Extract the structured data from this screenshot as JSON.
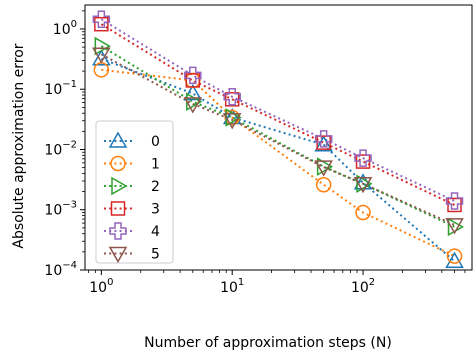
{
  "chart_data": {
    "type": "line",
    "title": "",
    "xlabel": "Number of approximation steps (N)",
    "ylabel": "Absolute approximation error",
    "xscale": "log",
    "yscale": "log",
    "xlim": [
      0.75,
      680
    ],
    "ylim": [
      0.0001,
      2.5
    ],
    "x": [
      1,
      5,
      10,
      50,
      100,
      500
    ],
    "x_ticks": [
      1,
      10,
      100
    ],
    "x_tick_labels": [
      {
        "base": "10",
        "exp": "0"
      },
      {
        "base": "10",
        "exp": "1"
      },
      {
        "base": "10",
        "exp": "2"
      }
    ],
    "y_ticks": [
      0.0001,
      0.001,
      0.01,
      0.1,
      1
    ],
    "y_tick_labels": [
      {
        "base": "10",
        "exp": "−4"
      },
      {
        "base": "10",
        "exp": "−3"
      },
      {
        "base": "10",
        "exp": "−2"
      },
      {
        "base": "10",
        "exp": "−1"
      },
      {
        "base": "10",
        "exp": "0"
      }
    ],
    "grid": false,
    "legend_position": "lower-left",
    "series": [
      {
        "name": "0",
        "marker": "triangle-up",
        "color": "#1f77b4",
        "values": [
          0.32,
          0.085,
          0.034,
          0.012,
          0.0028,
          0.00014
        ]
      },
      {
        "name": "1",
        "marker": "circle",
        "color": "#ff7f0e",
        "values": [
          0.21,
          0.14,
          0.034,
          0.0026,
          0.0009,
          0.00017
        ]
      },
      {
        "name": "2",
        "marker": "triangle-right",
        "color": "#2ca02c",
        "values": [
          0.52,
          0.062,
          0.034,
          0.0052,
          0.0027,
          0.00052
        ]
      },
      {
        "name": "3",
        "marker": "square",
        "color": "#d62728",
        "values": [
          1.2,
          0.14,
          0.068,
          0.013,
          0.0063,
          0.0012
        ]
      },
      {
        "name": "4",
        "marker": "plus",
        "color": "#9467bd",
        "values": [
          1.45,
          0.17,
          0.075,
          0.015,
          0.0072,
          0.0014
        ]
      },
      {
        "name": "5",
        "marker": "triangle-down",
        "color": "#8c564b",
        "values": [
          0.38,
          0.057,
          0.031,
          0.0051,
          0.0027,
          0.00056
        ]
      }
    ]
  }
}
